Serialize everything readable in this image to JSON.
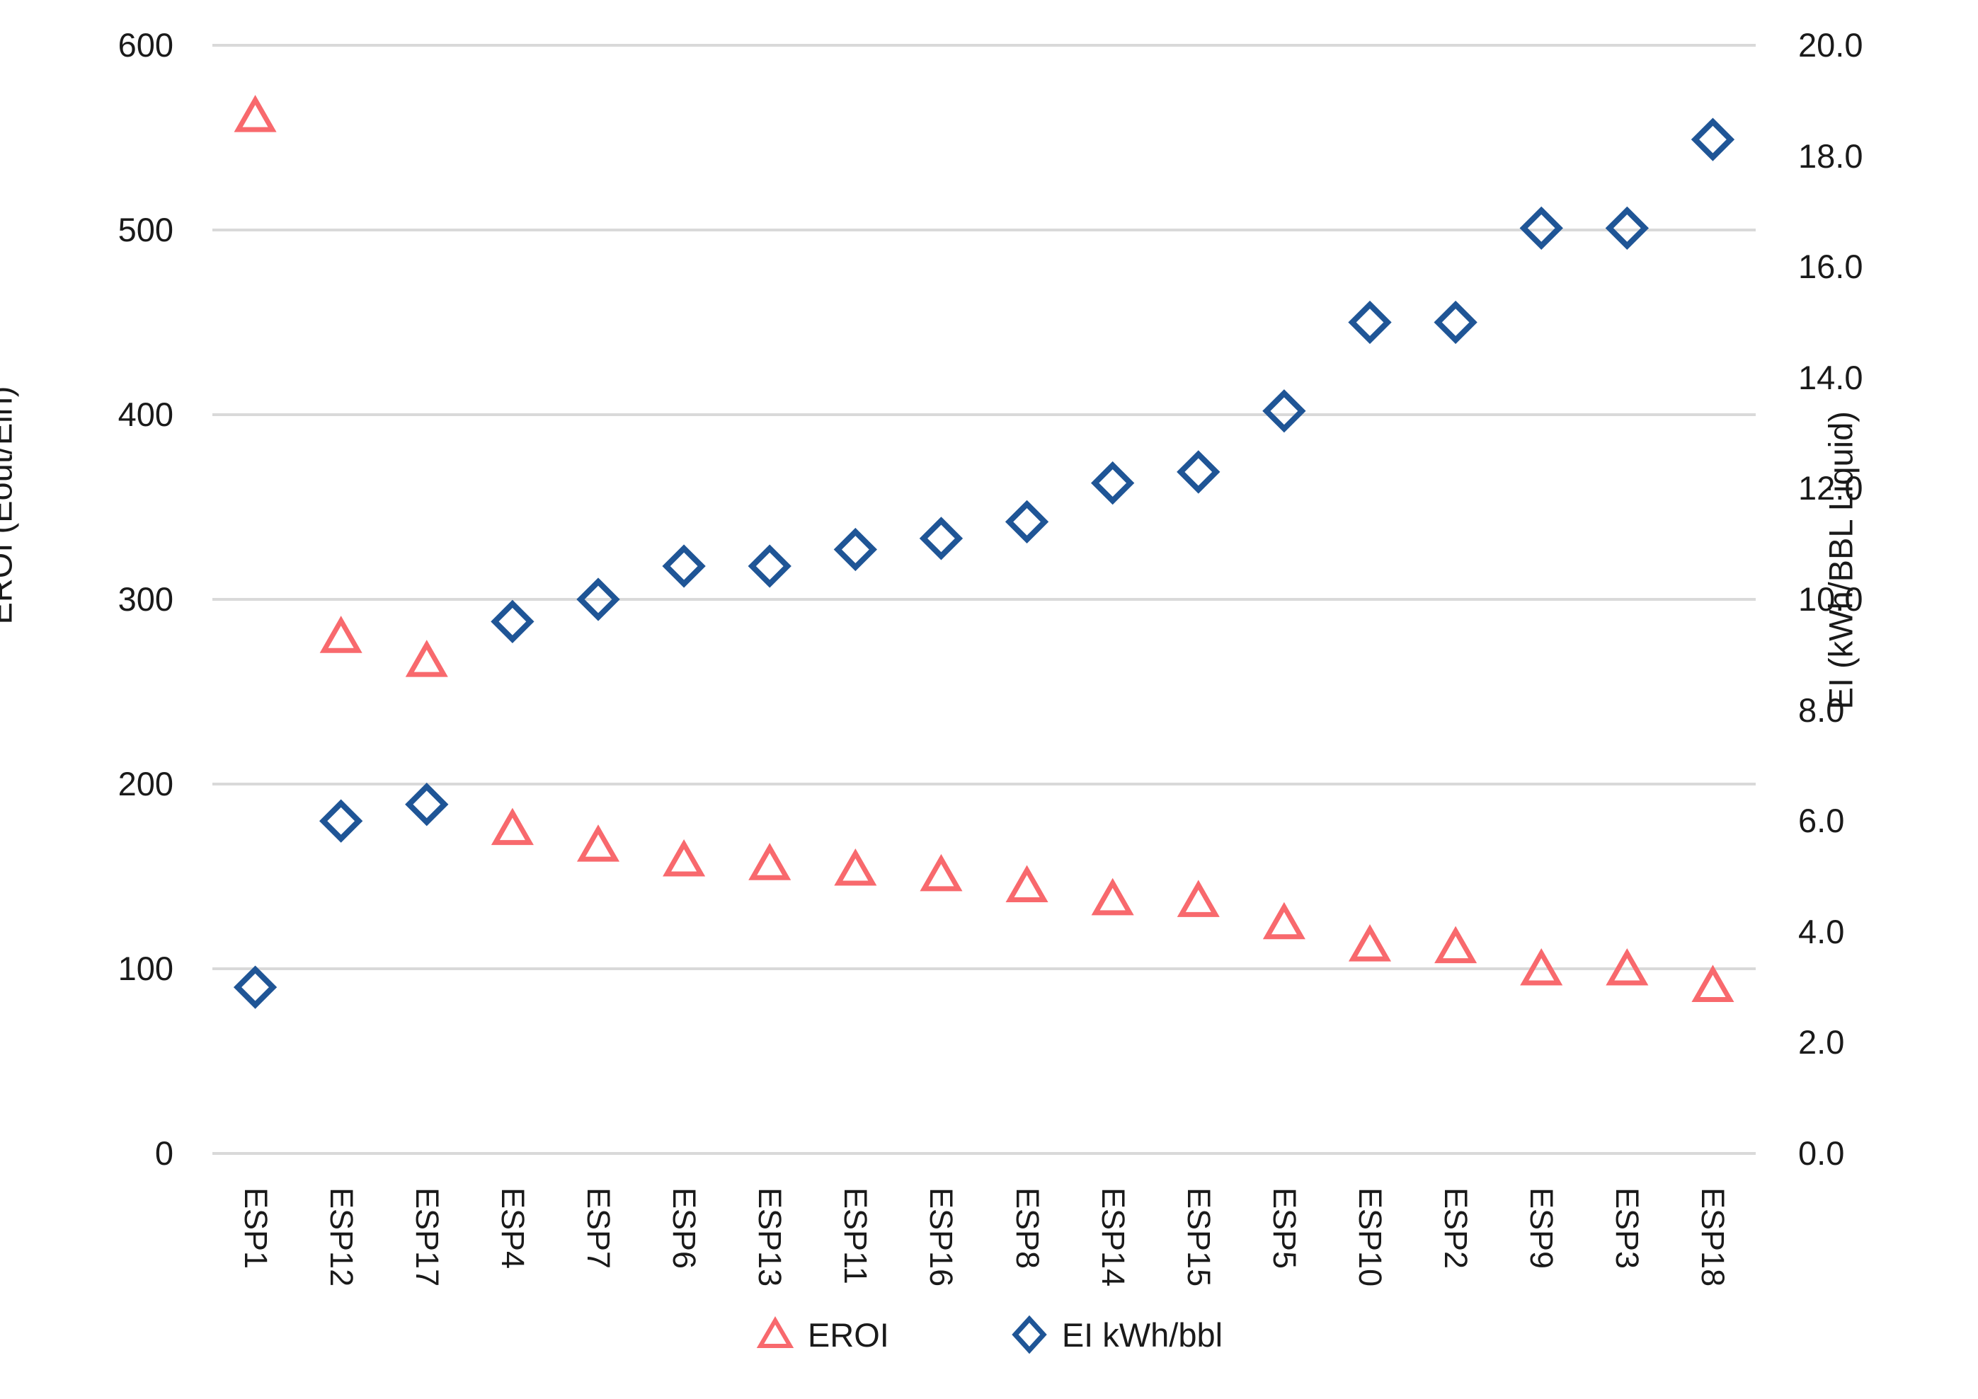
{
  "chart_data": {
    "type": "scatter",
    "title": "",
    "categories": [
      "ESP1",
      "ESP12",
      "ESP17",
      "ESP4",
      "ESP7",
      "ESP6",
      "ESP13",
      "ESP11",
      "ESP16",
      "ESP8",
      "ESP14",
      "ESP15",
      "ESP5",
      "ESP10",
      "ESP2",
      "ESP9",
      "ESP3",
      "ESP18"
    ],
    "series": [
      {
        "name": "EROI",
        "axis": "left",
        "marker": "triangle",
        "color": "#F8696D",
        "values": [
          562,
          280,
          267,
          176,
          167,
          159,
          157,
          154,
          151,
          145,
          138,
          137,
          125,
          113,
          112,
          100,
          100,
          91
        ]
      },
      {
        "name": "EI kWh/bbl",
        "axis": "right",
        "marker": "diamond",
        "color": "#1F5596",
        "values": [
          3.0,
          6.0,
          6.3,
          9.6,
          10.0,
          10.6,
          10.6,
          10.9,
          11.1,
          11.4,
          12.1,
          12.3,
          13.4,
          15.0,
          15.0,
          16.7,
          16.7,
          18.3
        ]
      }
    ],
    "left_axis": {
      "title": "EROI (Eout/Ein)",
      "min": 0,
      "max": 600,
      "tick_labels": [
        "600",
        "500",
        "400",
        "300",
        "200",
        "100",
        "0"
      ],
      "tick_values": [
        600,
        500,
        400,
        300,
        200,
        100,
        0
      ]
    },
    "right_axis": {
      "title": "EI (kWh/BBL Liquid)",
      "min": 0,
      "max": 20,
      "tick_labels": [
        "20.0",
        "18.0",
        "16.0",
        "14.0",
        "12.0",
        "10.0",
        "8.0",
        "6.0",
        "4.0",
        "2.0",
        "0.0"
      ],
      "tick_values": [
        20,
        18,
        16,
        14,
        12,
        10,
        8,
        6,
        4,
        2,
        0
      ]
    },
    "legend": [
      {
        "label": "EROI",
        "marker": "triangle",
        "color": "#F8696D"
      },
      {
        "label": "EI kWh/bbl",
        "marker": "diamond",
        "color": "#1F5596"
      }
    ],
    "legend_position": "bottom",
    "grid": true,
    "gridline_color": "#D9D9D9",
    "background_color": "#FFFFFF",
    "text_color": "#1a1a1a"
  }
}
